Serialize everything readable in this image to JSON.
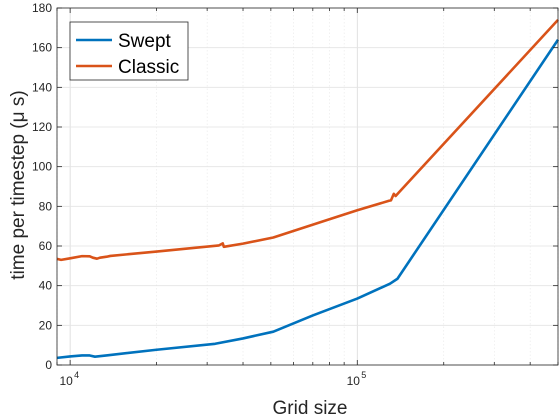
{
  "chart_data": {
    "type": "line",
    "xscale": "log",
    "xlim": [
      9000,
      500000
    ],
    "ylim": [
      0,
      180
    ],
    "grid": true,
    "legend_position": "top-left",
    "xlabel": "Grid size",
    "ylabel": "time per timestep (μ s)",
    "yticks": [
      0,
      20,
      40,
      60,
      80,
      100,
      120,
      140,
      160,
      180
    ],
    "xticks": [
      {
        "value": 10000,
        "base": "10",
        "exp": "4"
      },
      {
        "value": 100000,
        "base": "10",
        "exp": "5"
      }
    ],
    "series": [
      {
        "name": "Swept",
        "color": "#0072BD",
        "points": [
          [
            9000,
            3.6
          ],
          [
            10000,
            4.3
          ],
          [
            11000,
            4.8
          ],
          [
            11700,
            4.8
          ],
          [
            12200,
            4.2
          ],
          [
            13500,
            4.9
          ],
          [
            20000,
            7.7
          ],
          [
            32000,
            10.7
          ],
          [
            40000,
            13.4
          ],
          [
            51000,
            16.8
          ],
          [
            70000,
            25
          ],
          [
            100000,
            33.5
          ],
          [
            130000,
            41
          ],
          [
            138000,
            43.5
          ],
          [
            500000,
            164
          ]
        ]
      },
      {
        "name": "Classic",
        "color": "#D95319",
        "points": [
          [
            9000,
            53.5
          ],
          [
            9300,
            53.0
          ],
          [
            10000,
            53.8
          ],
          [
            11000,
            54.9
          ],
          [
            11700,
            54.8
          ],
          [
            12000,
            54.1
          ],
          [
            12400,
            53.6
          ],
          [
            12700,
            54.1
          ],
          [
            13400,
            54.6
          ],
          [
            13800,
            55.0
          ],
          [
            20000,
            57.2
          ],
          [
            33000,
            60.3
          ],
          [
            34000,
            61.3
          ],
          [
            34300,
            59.6
          ],
          [
            40000,
            61.2
          ],
          [
            51000,
            64.3
          ],
          [
            80000,
            73.5
          ],
          [
            100000,
            78
          ],
          [
            129000,
            82.8
          ],
          [
            131000,
            83.0
          ],
          [
            134000,
            86.3
          ],
          [
            136000,
            85.2
          ],
          [
            139000,
            86.7
          ],
          [
            500000,
            174
          ]
        ]
      }
    ]
  }
}
